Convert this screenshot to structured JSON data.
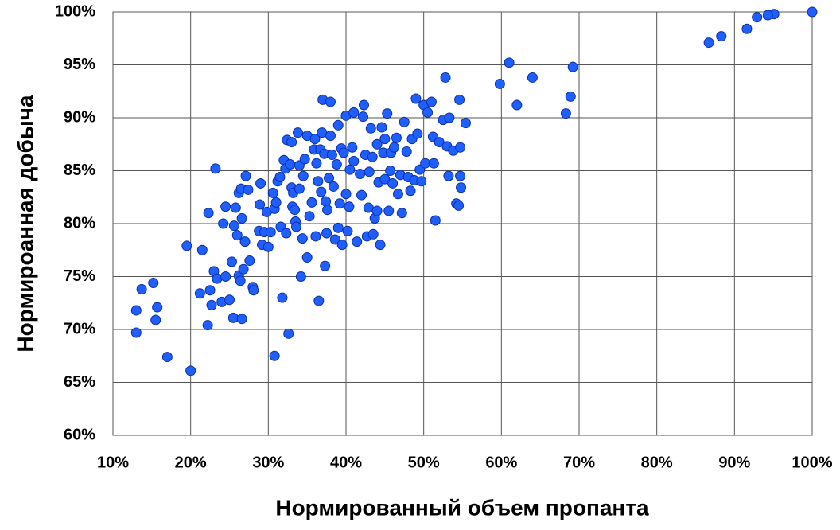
{
  "chart_data": {
    "type": "scatter",
    "x_label": "Нормированный объем пропанта",
    "y_label": "Нормироанная добыча",
    "color": "#1f5fff",
    "grid": true,
    "xlim": [
      10,
      100
    ],
    "ylim": [
      60,
      100
    ],
    "xticks": [
      {
        "value": 10,
        "label": "10%"
      },
      {
        "value": 20,
        "label": "20%"
      },
      {
        "value": 30,
        "label": "30%"
      },
      {
        "value": 40,
        "label": "40%"
      },
      {
        "value": 50,
        "label": "50%"
      },
      {
        "value": 60,
        "label": "60%"
      },
      {
        "value": 70,
        "label": "70%"
      },
      {
        "value": 80,
        "label": "80%"
      },
      {
        "value": 90,
        "label": "90%"
      },
      {
        "value": 100,
        "label": "100%"
      }
    ],
    "yticks": [
      {
        "value": 60,
        "label": "60%"
      },
      {
        "value": 65,
        "label": "65%"
      },
      {
        "value": 70,
        "label": "70%"
      },
      {
        "value": 75,
        "label": "75%"
      },
      {
        "value": 80,
        "label": "80%"
      },
      {
        "value": 85,
        "label": "85%"
      },
      {
        "value": 90,
        "label": "90%"
      },
      {
        "value": 95,
        "label": "95%"
      },
      {
        "value": 100,
        "label": "100%"
      }
    ],
    "x": [
      100,
      95.1,
      94.3,
      92.9,
      91.6,
      88.3,
      86.7,
      69.2,
      68.9,
      68.3,
      64,
      62,
      61,
      59.8,
      13,
      13,
      13.7,
      15.2,
      15.5,
      15.7,
      17,
      20,
      19.5,
      21.5,
      21.2,
      22.2,
      22.3,
      22.5,
      22.7,
      23,
      23.2,
      23.4,
      24,
      24.2,
      24.5,
      24.5,
      25,
      25.3,
      25.5,
      25.6,
      25.8,
      26,
      26.2,
      26.4,
      26.2,
      26.5,
      26.6,
      26.6,
      26.8,
      27,
      27.1,
      27.4,
      27.6,
      28,
      28.1,
      28.8,
      28.9,
      29,
      29.2,
      29.5,
      29.8,
      30,
      30.3,
      30.6,
      30.8,
      30.8,
      31,
      31.2,
      31.5,
      31.6,
      31.8,
      32,
      32.2,
      32.3,
      32.4,
      32.6,
      32.8,
      33,
      33,
      33.1,
      33.2,
      33.4,
      33.5,
      33.6,
      33.8,
      34,
      34,
      34.2,
      34.4,
      34.5,
      34.7,
      35,
      35,
      35.3,
      35.6,
      35.9,
      36,
      36.1,
      36.2,
      36.4,
      36.5,
      36.7,
      36.8,
      36.9,
      37,
      37.2,
      37.3,
      37.4,
      37.5,
      37.6,
      37.8,
      38,
      38,
      38.2,
      38.4,
      38.6,
      38.8,
      39,
      39,
      39.2,
      39.4,
      39.5,
      39.7,
      40,
      40,
      40.2,
      40.4,
      40.5,
      40.8,
      41,
      41,
      41.4,
      41.8,
      42,
      42.2,
      42.3,
      42.5,
      42.7,
      42.9,
      43,
      43.2,
      43.4,
      43.5,
      43.7,
      44,
      44,
      44.2,
      44.4,
      44.6,
      44.8,
      45,
      45,
      45.3,
      45.5,
      45.7,
      45.8,
      46,
      46.2,
      46.5,
      46.7,
      47,
      47.2,
      47.5,
      47.8,
      48,
      48.3,
      48.5,
      48.8,
      49,
      49.2,
      49.5,
      49.7,
      50,
      50.2,
      50.5,
      51,
      51.2,
      51.3,
      51.5,
      52,
      52.5,
      52.8,
      53,
      53.2,
      53.3,
      53.8,
      54.2,
      54.5,
      54.6,
      54.7,
      54.7,
      54.8,
      55.4
    ],
    "values": [
      100,
      99.8,
      99.7,
      99.5,
      98.4,
      97.7,
      97.1,
      94.8,
      92,
      90.4,
      93.8,
      91.2,
      95.2,
      93.2,
      69.7,
      71.8,
      73.8,
      74.4,
      70.9,
      72.1,
      67.4,
      66.1,
      77.9,
      77.5,
      73.4,
      70.4,
      81,
      73.7,
      72.3,
      75.5,
      85.2,
      74.8,
      72.6,
      80,
      81.6,
      75,
      72.8,
      76.4,
      71.1,
      79.8,
      81.5,
      78.9,
      75.1,
      74.6,
      82.9,
      83.3,
      80.5,
      71,
      75.7,
      78.3,
      84.5,
      83.2,
      76.5,
      74,
      73.7,
      79.3,
      81.8,
      83.8,
      78,
      79.2,
      81.1,
      77.8,
      79.2,
      82.9,
      67.5,
      81.4,
      82,
      84,
      84.4,
      79.7,
      73,
      86,
      85.2,
      79.1,
      87.9,
      69.6,
      85.6,
      87.7,
      83.4,
      81.6,
      82.9,
      81.3,
      80.2,
      79.7,
      88.6,
      85.5,
      83.3,
      75,
      78.6,
      84.5,
      86.1,
      88.3,
      76.8,
      80.7,
      82,
      87,
      88,
      78.8,
      85.7,
      84,
      72.7,
      87,
      83,
      88.6,
      91.7,
      86.6,
      76,
      82.1,
      79.1,
      81.3,
      84.3,
      88.3,
      91.5,
      86.5,
      83.5,
      78.5,
      85.6,
      89.3,
      79.6,
      81.9,
      87.1,
      78,
      86.7,
      90.2,
      82.8,
      79.3,
      81.6,
      85.1,
      87.2,
      85.9,
      90.5,
      78.3,
      84.7,
      82.7,
      90.1,
      91.2,
      86.5,
      78.8,
      81.5,
      84.9,
      89,
      86.3,
      79,
      80.5,
      87.5,
      81.2,
      83.9,
      78,
      89.1,
      86.7,
      88,
      84.2,
      90.4,
      81.2,
      85,
      86.7,
      83.8,
      87.2,
      88.1,
      82.8,
      84.6,
      81,
      89.6,
      86.8,
      84.4,
      83.1,
      88,
      84.1,
      91.8,
      88.5,
      85.1,
      84,
      91.2,
      85.7,
      90.5,
      91.5,
      88.2,
      85.7,
      80.3,
      87.7,
      89.8,
      93.8,
      87.3,
      84.5,
      90,
      86.9,
      81.9,
      81.7,
      91.7,
      84.5,
      87.2,
      83.4,
      89.5
    ]
  }
}
